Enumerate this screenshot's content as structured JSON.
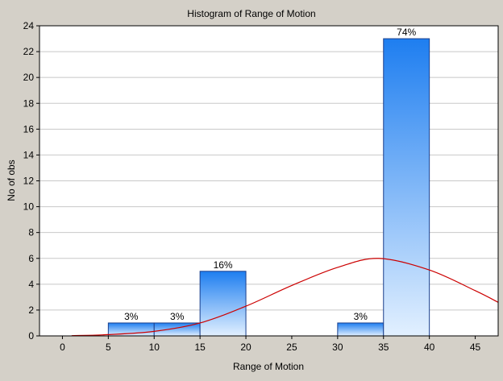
{
  "chart_data": {
    "type": "bar",
    "title": "Histogram of Range of Motion",
    "xlabel": "Range of Motion",
    "ylabel": "No of obs",
    "xlim": [
      -2.5,
      47.5
    ],
    "ylim": [
      0,
      24
    ],
    "x_ticks": [
      0,
      5,
      10,
      15,
      20,
      25,
      30,
      35,
      40,
      45
    ],
    "y_ticks": [
      0,
      2,
      4,
      6,
      8,
      10,
      12,
      14,
      16,
      18,
      20,
      22,
      24
    ],
    "bins": [
      {
        "from": 5,
        "to": 10,
        "count": 1,
        "label": "3%"
      },
      {
        "from": 10,
        "to": 15,
        "count": 1,
        "label": "3%"
      },
      {
        "from": 15,
        "to": 20,
        "count": 5,
        "label": "16%"
      },
      {
        "from": 30,
        "to": 35,
        "count": 1,
        "label": "3%"
      },
      {
        "from": 35,
        "to": 40,
        "count": 23,
        "label": "74%"
      }
    ],
    "fit_curve": {
      "type": "normal",
      "x": [
        1,
        5,
        10,
        15,
        20,
        25,
        30,
        34.5,
        40,
        45,
        47.5
      ],
      "y": [
        0.02,
        0.1,
        0.35,
        1.0,
        2.3,
        3.9,
        5.3,
        6.0,
        5.1,
        3.5,
        2.6
      ]
    },
    "grid": true,
    "colors": {
      "background": "#d4d0c8",
      "plot_area": "#ffffff",
      "bar_top": "#1e7ef0",
      "bar_bottom": "#e2f0ff",
      "bar_edge": "#1a3f8c",
      "curve": "#cc0000",
      "grid": "#c8c8c8"
    }
  }
}
